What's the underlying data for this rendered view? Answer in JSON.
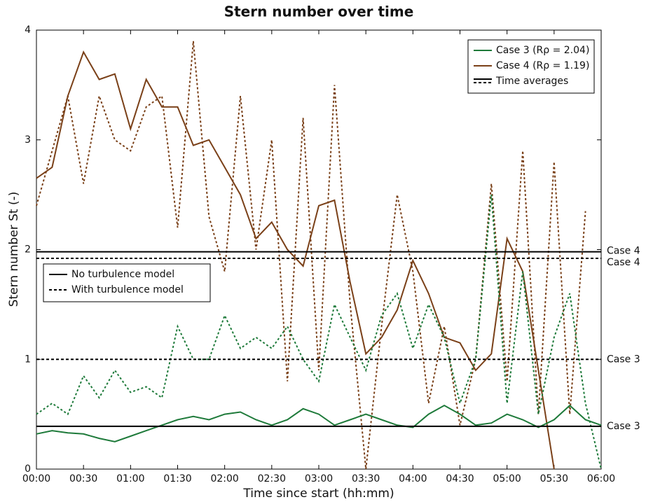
{
  "chart_data": {
    "type": "line",
    "title": "Stern number over time",
    "xlabel": "Time since start (hh:mm)",
    "ylabel": "Stern number St (-)",
    "xlim": [
      0,
      360
    ],
    "xticks": [
      {
        "value": 0,
        "label": "00:00"
      },
      {
        "value": 30,
        "label": "00:30"
      },
      {
        "value": 60,
        "label": "01:00"
      },
      {
        "value": 90,
        "label": "01:30"
      },
      {
        "value": 120,
        "label": "02:00"
      },
      {
        "value": 150,
        "label": "02:30"
      },
      {
        "value": 180,
        "label": "03:00"
      },
      {
        "value": 210,
        "label": "03:30"
      },
      {
        "value": 240,
        "label": "04:00"
      },
      {
        "value": 270,
        "label": "04:30"
      },
      {
        "value": 300,
        "label": "05:00"
      },
      {
        "value": 330,
        "label": "05:30"
      },
      {
        "value": 360,
        "label": "06:00"
      }
    ],
    "ylim": [
      0,
      4
    ],
    "yticks": [
      0,
      1,
      2,
      3,
      4
    ],
    "x": [
      0,
      10,
      20,
      30,
      40,
      50,
      60,
      70,
      80,
      90,
      100,
      110,
      120,
      130,
      140,
      150,
      160,
      170,
      180,
      190,
      200,
      210,
      220,
      230,
      240,
      250,
      260,
      270,
      280,
      290,
      300,
      310,
      320,
      330,
      340,
      350,
      360
    ],
    "series": [
      {
        "color": "#7a4018",
        "dashed": false,
        "values": [
          2.65,
          2.75,
          3.4,
          3.8,
          3.55,
          3.6,
          3.1,
          3.55,
          3.3,
          3.3,
          2.95,
          3.0,
          2.75,
          2.5,
          2.1,
          2.25,
          2.0,
          1.85,
          2.4,
          2.45,
          1.7,
          1.05,
          1.2,
          1.45,
          1.9,
          1.6,
          1.2,
          1.15,
          0.9,
          1.05,
          2.1,
          1.8,
          0.9,
          0.0,
          null,
          null,
          null
        ]
      },
      {
        "color": "#7a4018",
        "dashed": true,
        "values": [
          2.4,
          2.9,
          3.4,
          2.6,
          3.4,
          3.0,
          2.9,
          3.3,
          3.4,
          2.2,
          3.9,
          2.3,
          1.8,
          3.4,
          2.0,
          3.0,
          0.8,
          3.2,
          0.9,
          3.5,
          1.5,
          0.0,
          1.3,
          2.5,
          1.8,
          0.6,
          1.3,
          0.4,
          1.0,
          2.6,
          0.8,
          2.9,
          0.5,
          2.8,
          0.5,
          2.35,
          null
        ]
      },
      {
        "color": "#1e7a3a",
        "dashed": false,
        "values": [
          0.32,
          0.35,
          0.33,
          0.32,
          0.28,
          0.25,
          0.3,
          0.35,
          0.4,
          0.45,
          0.48,
          0.45,
          0.5,
          0.52,
          0.45,
          0.4,
          0.45,
          0.55,
          0.5,
          0.4,
          0.45,
          0.5,
          0.45,
          0.4,
          0.38,
          0.5,
          0.58,
          0.5,
          0.4,
          0.42,
          0.5,
          0.45,
          0.38,
          0.45,
          0.58,
          0.45,
          0.4
        ]
      },
      {
        "color": "#1e7a3a",
        "dashed": true,
        "values": [
          0.5,
          0.6,
          0.5,
          0.85,
          0.65,
          0.9,
          0.7,
          0.75,
          0.65,
          1.3,
          1.0,
          1.0,
          1.4,
          1.1,
          1.2,
          1.1,
          1.3,
          1.0,
          0.8,
          1.5,
          1.2,
          0.9,
          1.4,
          1.6,
          1.1,
          1.5,
          1.2,
          0.6,
          1.0,
          2.5,
          0.6,
          1.8,
          0.5,
          1.2,
          1.6,
          0.6,
          0.0
        ]
      }
    ],
    "averages": [
      {
        "label": "Case 4",
        "value": 1.98,
        "dashed": false
      },
      {
        "label": "Case 4",
        "value": 1.92,
        "dashed": true
      },
      {
        "label": "Case 3",
        "value": 1.0,
        "dashed": true
      },
      {
        "label": "Case 3",
        "value": 0.39,
        "dashed": false
      }
    ],
    "legend": [
      {
        "name": "Case 3 (Rρ = 2.04)",
        "color": "#1e7a3a"
      },
      {
        "name": "Case 4 (Rρ = 1.19)",
        "color": "#7a4018"
      },
      {
        "name": "Time averages",
        "color": "#000000"
      }
    ],
    "style_legend": [
      "No turbulence model",
      "With turbulence model"
    ]
  }
}
